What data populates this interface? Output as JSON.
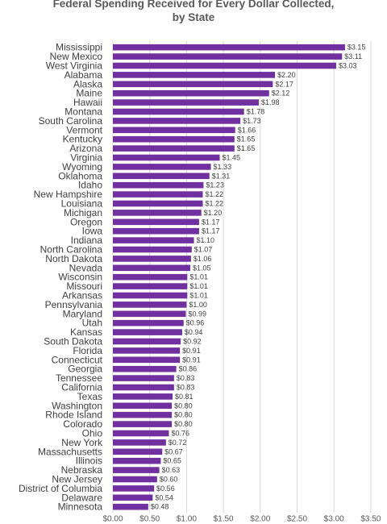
{
  "chart_data": {
    "type": "bar",
    "orientation": "horizontal",
    "title": "Federal Spending Received for Every Dollar Collected, by State",
    "title_lines": [
      "Federal Spending Received for Every Dollar Collected,",
      "by State"
    ],
    "bar_color": "#7030A0",
    "grid": true,
    "xlim": [
      0,
      3.5
    ],
    "xticks": [
      0,
      0.5,
      1,
      1.5,
      2,
      2.5,
      3,
      3.5
    ],
    "xtick_labels": [
      "$0.00",
      "$0.50",
      "$1.00",
      "$1.50",
      "$2.00",
      "$2.50",
      "$3.00",
      "$3.50"
    ],
    "categories": [
      "Mississippi",
      "New Mexico",
      "West Virginia",
      "Alabama",
      "Alaska",
      "Maine",
      "Hawaii",
      "Montana",
      "South Carolina",
      "Vermont",
      "Kentucky",
      "Arizona",
      "Virginia",
      "Wyoming",
      "Oklahoma",
      "Idaho",
      "New Hampshire",
      "Louisiana",
      "Michigan",
      "Oregon",
      "Iowa",
      "Indiana",
      "North Carolina",
      "North Dakota",
      "Nevada",
      "Wisconsin",
      "Missouri",
      "Arkansas",
      "Pennsylvania",
      "Maryland",
      "Utah",
      "Kansas",
      "South Dakota",
      "Florida",
      "Connecticut",
      "Georgia",
      "Tennessee",
      "California",
      "Texas",
      "Washington",
      "Rhode Island",
      "Colorado",
      "Ohio",
      "New York",
      "Massachusetts",
      "Illinois",
      "Nebraska",
      "New Jersey",
      "District of Columbia",
      "Delaware",
      "Minnesota"
    ],
    "values": [
      3.15,
      3.11,
      3.03,
      2.2,
      2.17,
      2.12,
      1.98,
      1.78,
      1.73,
      1.66,
      1.65,
      1.65,
      1.45,
      1.33,
      1.31,
      1.23,
      1.22,
      1.22,
      1.2,
      1.17,
      1.17,
      1.1,
      1.07,
      1.06,
      1.05,
      1.01,
      1.01,
      1.01,
      1.0,
      0.99,
      0.96,
      0.94,
      0.92,
      0.91,
      0.91,
      0.86,
      0.83,
      0.83,
      0.81,
      0.8,
      0.8,
      0.8,
      0.76,
      0.72,
      0.67,
      0.65,
      0.63,
      0.6,
      0.56,
      0.54,
      0.48
    ],
    "value_labels": [
      "$3.15",
      "$3.11",
      "$3.03",
      "$2.20",
      "$2.17",
      "$2.12",
      "$1.98",
      "$1.78",
      "$1.73",
      "$1.66",
      "$1.65",
      "$1.65",
      "$1.45",
      "$1.33",
      "$1.31",
      "$1.23",
      "$1.22",
      "$1.22",
      "$1.20",
      "$1.17",
      "$1.17",
      "$1.10",
      "$1.07",
      "$1.06",
      "$1.05",
      "$1.01",
      "$1.01",
      "$1.01",
      "$1.00",
      "$0.99",
      "$0.96",
      "$0.94",
      "$0.92",
      "$0.91",
      "$0.91",
      "$0.86",
      "$0.83",
      "$0.83",
      "$0.81",
      "$0.80",
      "$0.80",
      "$0.80",
      "$0.76",
      "$0.72",
      "$0.67",
      "$0.65",
      "$0.63",
      "$0.60",
      "$0.56",
      "$0.54",
      "$0.48"
    ]
  }
}
